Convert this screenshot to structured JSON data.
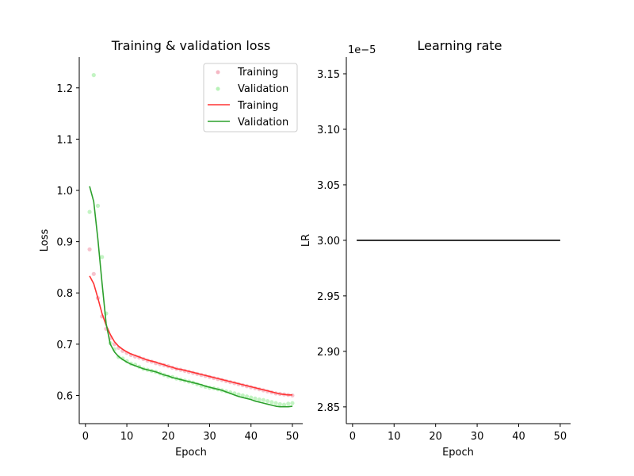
{
  "chart_data": [
    {
      "type": "line",
      "title": "Training & validation loss",
      "xlabel": "Epoch",
      "ylabel": "Loss",
      "xlim": [
        -1.5,
        52.5
      ],
      "ylim": [
        0.545,
        1.26
      ],
      "xticks": [
        0,
        10,
        20,
        30,
        40,
        50
      ],
      "yticks": [
        0.6,
        0.7,
        0.8,
        0.9,
        1.0,
        1.1,
        1.2
      ],
      "yticklabels": [
        "0.6",
        "0.7",
        "0.8",
        "0.9",
        "1.0",
        "1.1",
        "1.2"
      ],
      "grid": false,
      "legend_position": "top-right",
      "legend": [
        "Training",
        "Validation",
        "Training",
        "Validation"
      ],
      "colors": {
        "training": "#ff3333",
        "validation": "#2ca02c",
        "training_points": "#f5b8c4",
        "validation_points": "#b8f2b8"
      },
      "x": [
        1,
        2,
        3,
        4,
        5,
        6,
        7,
        8,
        9,
        10,
        11,
        12,
        13,
        14,
        15,
        16,
        17,
        18,
        19,
        20,
        21,
        22,
        23,
        24,
        25,
        26,
        27,
        28,
        29,
        30,
        31,
        32,
        33,
        34,
        35,
        36,
        37,
        38,
        39,
        40,
        41,
        42,
        43,
        44,
        45,
        46,
        47,
        48,
        49,
        50
      ],
      "series": [
        {
          "name": "Training",
          "style": "points",
          "values": [
            0.885,
            0.837,
            0.79,
            0.754,
            0.73,
            0.712,
            0.7,
            0.693,
            0.687,
            0.683,
            0.679,
            0.676,
            0.674,
            0.671,
            0.668,
            0.666,
            0.663,
            0.661,
            0.659,
            0.657,
            0.654,
            0.652,
            0.65,
            0.648,
            0.646,
            0.644,
            0.642,
            0.64,
            0.638,
            0.636,
            0.634,
            0.632,
            0.63,
            0.628,
            0.626,
            0.624,
            0.622,
            0.62,
            0.618,
            0.616,
            0.614,
            0.612,
            0.61,
            0.608,
            0.606,
            0.604,
            0.603,
            0.602,
            0.601,
            0.6
          ]
        },
        {
          "name": "Validation",
          "style": "points",
          "values": [
            0.958,
            1.225,
            0.97,
            0.87,
            0.76,
            0.702,
            0.69,
            0.675,
            0.672,
            0.667,
            0.662,
            0.66,
            0.656,
            0.652,
            0.65,
            0.648,
            0.646,
            0.643,
            0.64,
            0.637,
            0.636,
            0.633,
            0.631,
            0.629,
            0.627,
            0.625,
            0.622,
            0.619,
            0.617,
            0.615,
            0.614,
            0.612,
            0.61,
            0.608,
            0.606,
            0.604,
            0.602,
            0.6,
            0.598,
            0.596,
            0.594,
            0.592,
            0.591,
            0.589,
            0.587,
            0.585,
            0.583,
            0.582,
            0.584,
            0.585
          ]
        },
        {
          "name": "Training",
          "style": "line",
          "values": [
            0.833,
            0.818,
            0.79,
            0.76,
            0.737,
            0.719,
            0.705,
            0.696,
            0.69,
            0.685,
            0.681,
            0.678,
            0.675,
            0.672,
            0.669,
            0.667,
            0.665,
            0.662,
            0.66,
            0.657,
            0.655,
            0.652,
            0.651,
            0.649,
            0.647,
            0.645,
            0.643,
            0.641,
            0.639,
            0.637,
            0.635,
            0.633,
            0.631,
            0.629,
            0.627,
            0.625,
            0.623,
            0.621,
            0.619,
            0.617,
            0.615,
            0.613,
            0.611,
            0.609,
            0.607,
            0.605,
            0.603,
            0.602,
            0.601,
            0.601
          ]
        },
        {
          "name": "Validation",
          "style": "line",
          "values": [
            1.008,
            0.978,
            0.905,
            0.82,
            0.74,
            0.7,
            0.685,
            0.676,
            0.67,
            0.665,
            0.661,
            0.658,
            0.655,
            0.652,
            0.65,
            0.648,
            0.646,
            0.643,
            0.64,
            0.638,
            0.635,
            0.633,
            0.631,
            0.629,
            0.627,
            0.625,
            0.623,
            0.621,
            0.618,
            0.616,
            0.614,
            0.612,
            0.61,
            0.607,
            0.604,
            0.601,
            0.598,
            0.596,
            0.594,
            0.592,
            0.589,
            0.587,
            0.585,
            0.583,
            0.581,
            0.579,
            0.578,
            0.578,
            0.578,
            0.579
          ]
        }
      ]
    },
    {
      "type": "line",
      "title": "Learning rate",
      "xlabel": "Epoch",
      "ylabel": "LR",
      "offset_text": "1e−5",
      "xlim": [
        -1.5,
        52.5
      ],
      "ylim": [
        2.8349,
        3.165
      ],
      "xticks": [
        0,
        10,
        20,
        30,
        40,
        50
      ],
      "yticks": [
        2.85,
        2.9,
        2.95,
        3.0,
        3.05,
        3.1,
        3.15
      ],
      "yticklabels": [
        "2.85",
        "2.90",
        "2.95",
        "3.00",
        "3.05",
        "3.10",
        "3.15"
      ],
      "grid": false,
      "colors": {
        "line": "#000000"
      },
      "series": [
        {
          "name": "",
          "style": "line",
          "x": [
            1,
            50
          ],
          "values": [
            3.0,
            3.0
          ]
        }
      ]
    }
  ]
}
